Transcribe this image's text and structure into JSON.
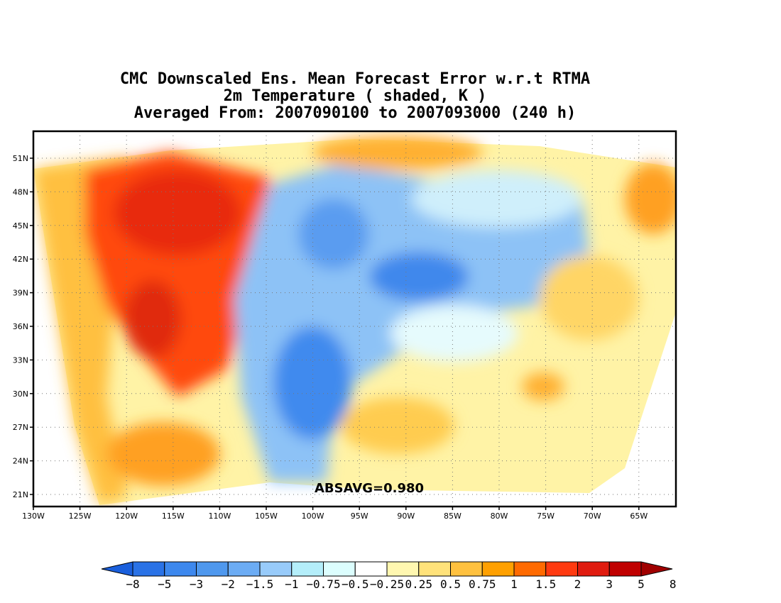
{
  "title": {
    "line1": "CMC Downscaled Ens. Mean Forecast Error w.r.t RTMA",
    "line2": "2m Temperature ( shaded, K )",
    "line3": "Averaged From: 2007090100 to 2007093000 (240 h)"
  },
  "map": {
    "lon_labels": [
      "130W",
      "125W",
      "120W",
      "115W",
      "110W",
      "105W",
      "100W",
      "95W",
      "90W",
      "85W",
      "80W",
      "75W",
      "70W",
      "65W"
    ],
    "lat_labels": [
      "51N",
      "48N",
      "45N",
      "42N",
      "39N",
      "36N",
      "33N",
      "30N",
      "27N",
      "24N",
      "21N"
    ],
    "stat_text": "ABSAVG=0.980"
  },
  "colorbar": {
    "labels": [
      "−8",
      "−5",
      "−3",
      "−2",
      "−1.5",
      "−1",
      "−0.75",
      "−0.5",
      "−0.25",
      "0.25",
      "0.5",
      "0.75",
      "1",
      "1.5",
      "2",
      "3",
      "5",
      "8"
    ],
    "colors": [
      "#1a5fdc",
      "#2a72e6",
      "#3d88ee",
      "#4f98ee",
      "#6cacf4",
      "#98cbfa",
      "#b4eefa",
      "#dcfefe",
      "#ffffff",
      "#fff7b0",
      "#ffe27a",
      "#ffc13f",
      "#ffa000",
      "#ff6a00",
      "#ff3a10",
      "#e01b0f",
      "#c00000",
      "#a00000"
    ]
  }
}
